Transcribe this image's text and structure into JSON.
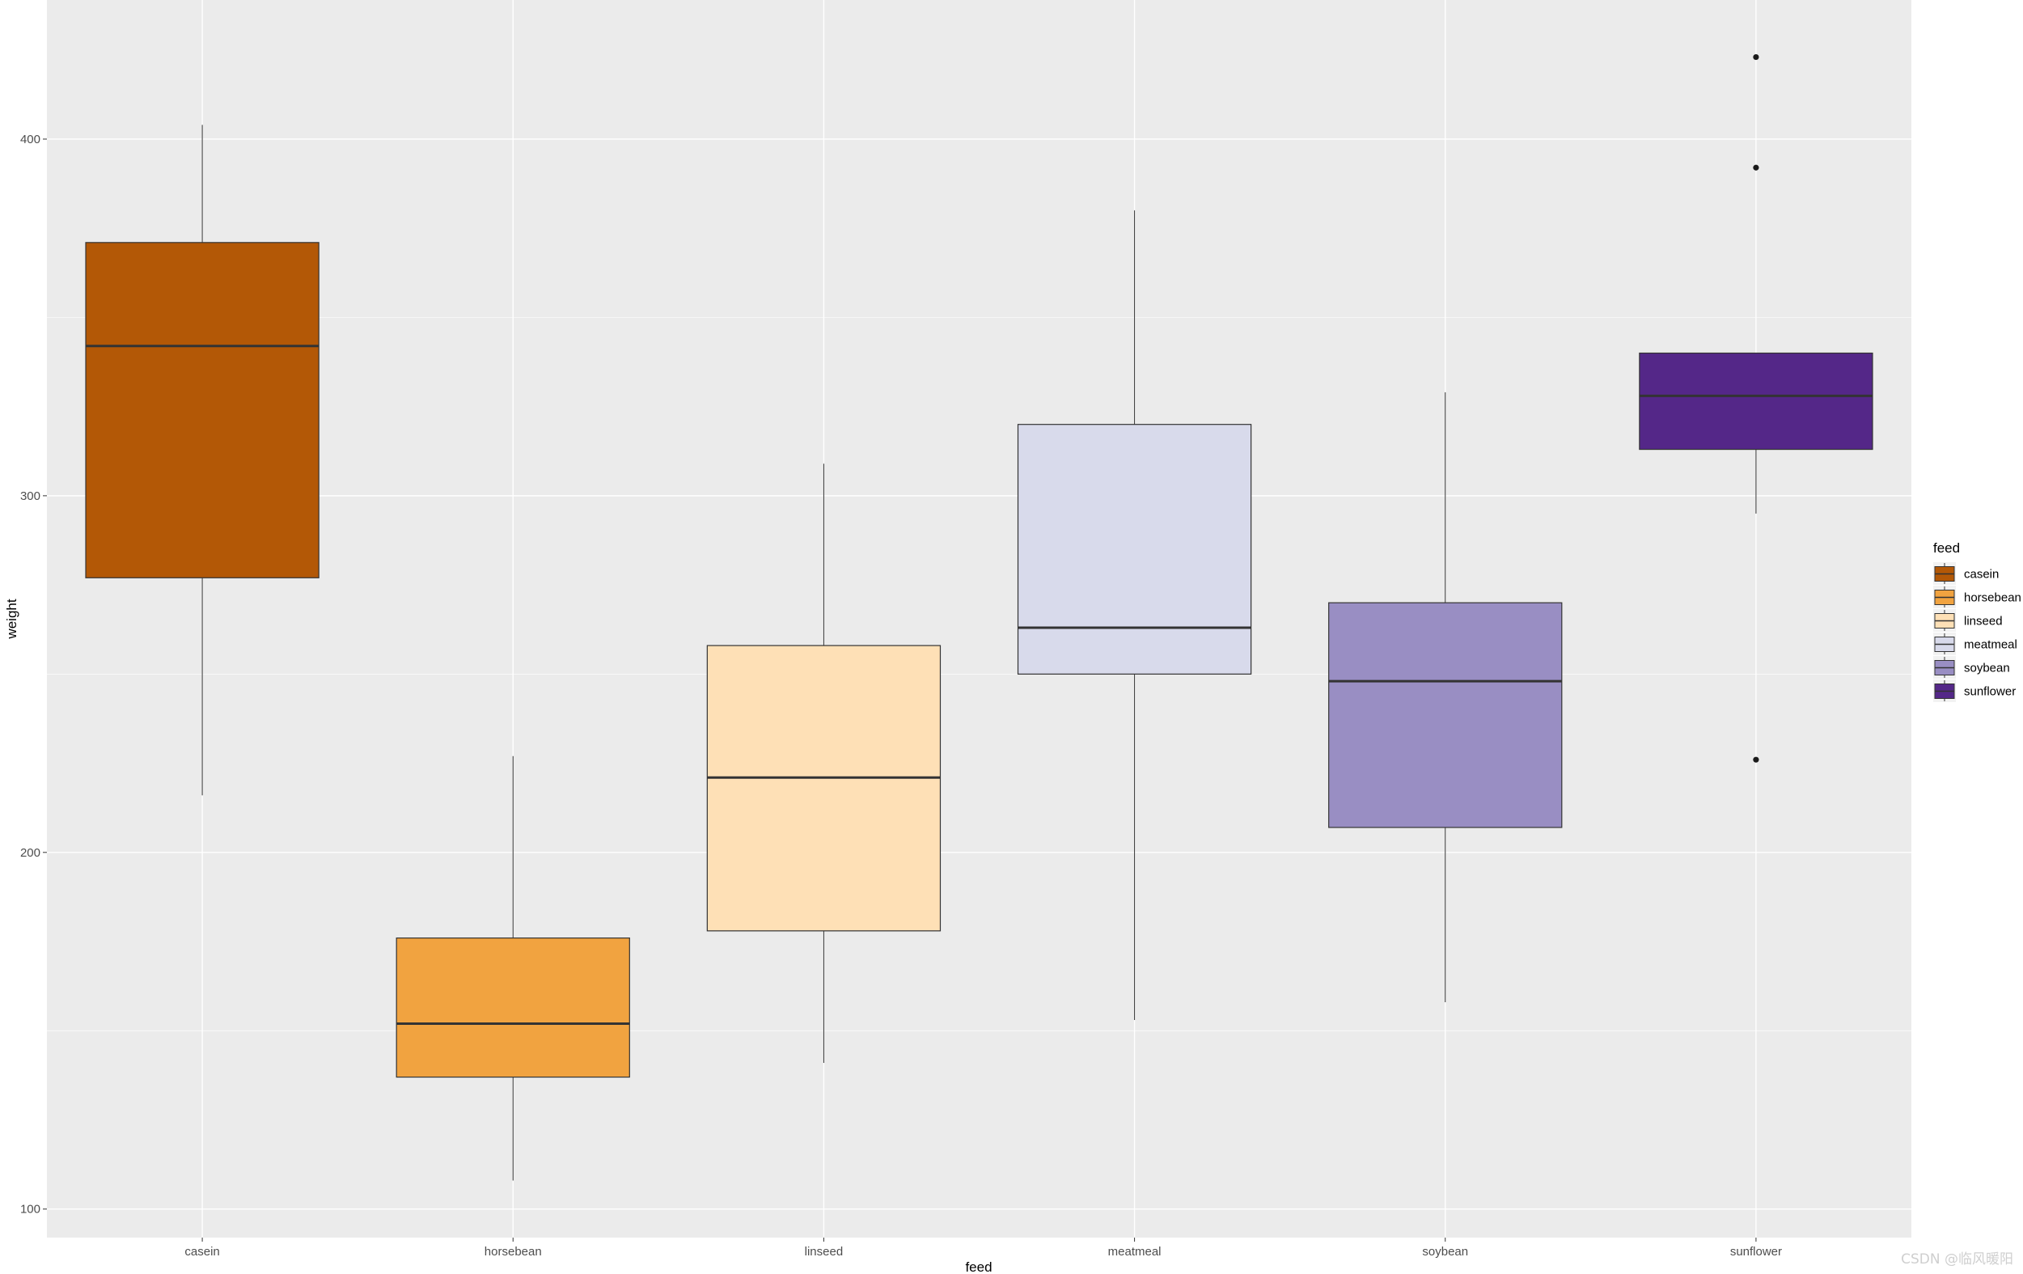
{
  "chart_data": {
    "type": "boxplot",
    "title": "",
    "xlabel": "feed",
    "ylabel": "weight",
    "ylim": [
      92,
      439
    ],
    "yticks": [
      100,
      200,
      300,
      400
    ],
    "grid": true,
    "legend": {
      "title": "feed",
      "position": "right",
      "entries": [
        "casein",
        "horsebean",
        "linseed",
        "meatmeal",
        "soybean",
        "sunflower"
      ]
    },
    "categories": [
      "casein",
      "horsebean",
      "linseed",
      "meatmeal",
      "soybean",
      "sunflower"
    ],
    "series": [
      {
        "name": "casein",
        "color": "#B35806",
        "q1": 277,
        "median": 342,
        "q3": 371,
        "whisker_low": 216,
        "whisker_high": 404,
        "outliers": []
      },
      {
        "name": "horsebean",
        "color": "#F1A340",
        "q1": 137,
        "median": 152,
        "q3": 176,
        "whisker_low": 108,
        "whisker_high": 227,
        "outliers": []
      },
      {
        "name": "linseed",
        "color": "#FEE0B6",
        "q1": 178,
        "median": 221,
        "q3": 258,
        "whisker_low": 141,
        "whisker_high": 309,
        "outliers": []
      },
      {
        "name": "meatmeal",
        "color": "#D8DAEB",
        "q1": 250,
        "median": 263,
        "q3": 320,
        "whisker_low": 153,
        "whisker_high": 380,
        "outliers": []
      },
      {
        "name": "soybean",
        "color": "#998EC3",
        "q1": 207,
        "median": 248,
        "q3": 270,
        "whisker_low": 158,
        "whisker_high": 329,
        "outliers": []
      },
      {
        "name": "sunflower",
        "color": "#542788",
        "q1": 313,
        "median": 328,
        "q3": 340,
        "whisker_low": 295,
        "whisker_high": 340,
        "outliers": [
          423,
          392,
          226
        ]
      }
    ]
  },
  "watermark": "CSDN @临风暖阳"
}
